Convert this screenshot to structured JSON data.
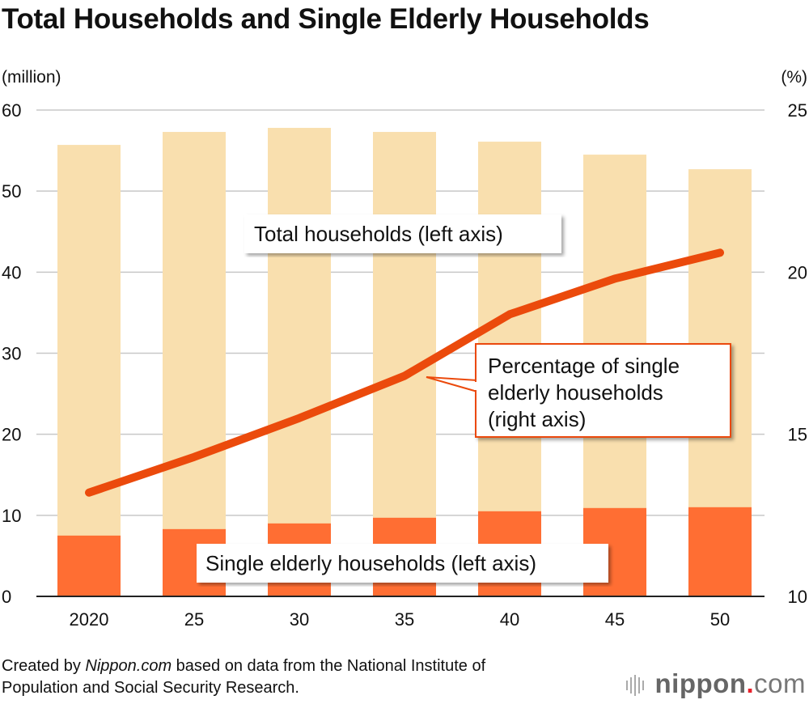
{
  "title": "Total Households and Single Elderly Households",
  "left_unit": "(million)",
  "right_unit": "(%)",
  "footer_line1_prefix": "Created by ",
  "footer_brand": "Nippon.com",
  "footer_line1_suffix": " based on data from the National Institute of",
  "footer_line2": "Population and Social Security Research.",
  "logo": {
    "name": "nippon",
    "dot": ".",
    "com": "com",
    "dot_color": "#e8202a"
  },
  "chart_data": {
    "type": "bar+line",
    "categories": [
      "2020",
      "25",
      "30",
      "35",
      "40",
      "45",
      "50"
    ],
    "left_axis": {
      "ylim": [
        0,
        60
      ],
      "ticks": [
        0,
        10,
        20,
        30,
        40,
        50,
        60
      ],
      "unit": "(million)"
    },
    "right_axis": {
      "ylim": [
        10,
        25
      ],
      "ticks": [
        10,
        15,
        20,
        25
      ],
      "unit": "(%)"
    },
    "grid": true,
    "series": [
      {
        "name": "Total households (left axis)",
        "type": "bar",
        "axis": "left",
        "color": "#f9dfae",
        "values": [
          55.7,
          57.3,
          57.8,
          57.3,
          56.1,
          54.5,
          52.7
        ]
      },
      {
        "name": "Single elderly households (left axis)",
        "type": "bar",
        "axis": "left",
        "color": "#ff6e33",
        "values": [
          7.5,
          8.3,
          9.0,
          9.7,
          10.5,
          10.9,
          11.0
        ]
      },
      {
        "name": "Percentage of single elderly households (right axis)",
        "label_lines": [
          "Percentage of single",
          "elderly households",
          "(right axis)"
        ],
        "type": "line",
        "axis": "right",
        "color": "#eb4a0c",
        "values": [
          13.2,
          14.3,
          15.5,
          16.8,
          18.7,
          19.8,
          20.6
        ]
      }
    ]
  }
}
